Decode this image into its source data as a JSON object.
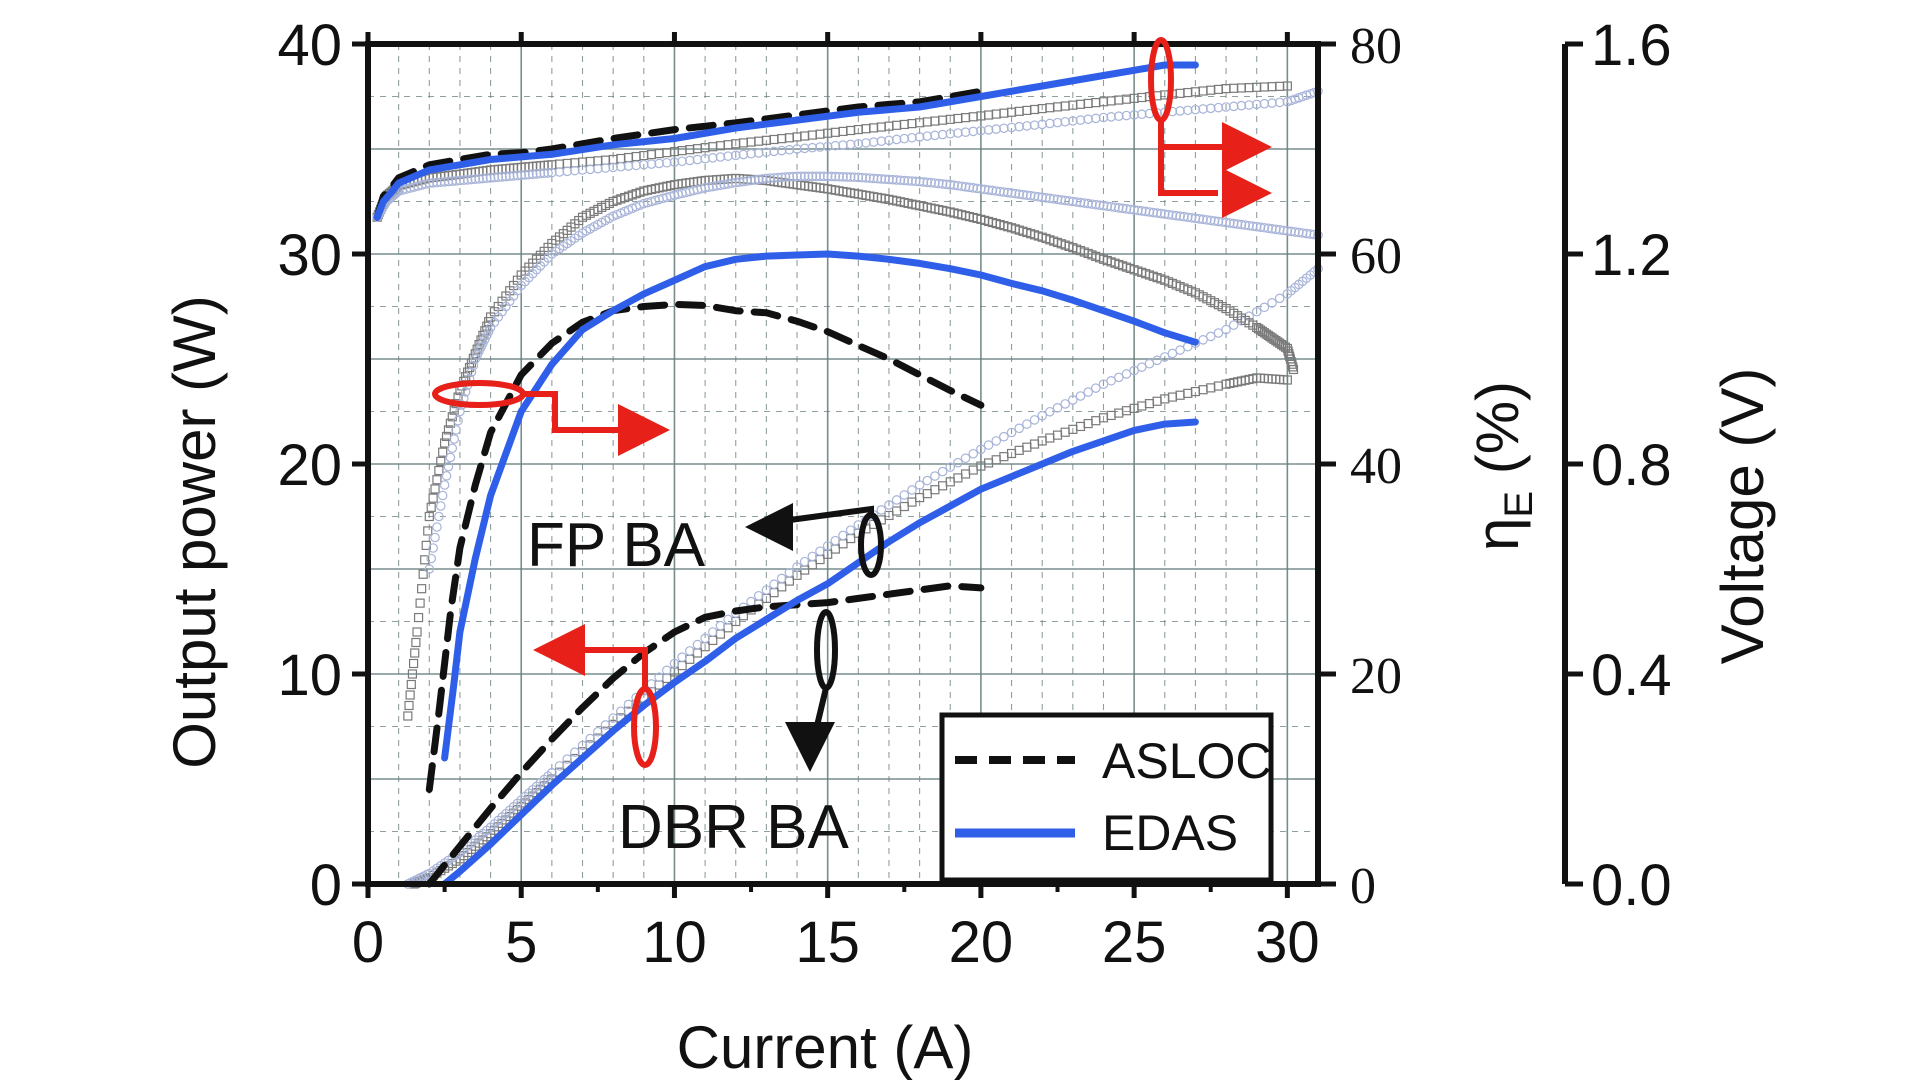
{
  "chart_data": {
    "type": "line",
    "xlabel": "Current (A)",
    "ylabel_left": "Output power (W)",
    "ylabel_mid": "η",
    "ylabel_mid_sub": "E",
    "ylabel_mid_suffix": " (%)",
    "ylabel_right": "Voltage (V)",
    "xlim": [
      0,
      31
    ],
    "ylim_left": [
      0,
      40
    ],
    "ylim_mid": [
      0,
      80
    ],
    "ylim_right": [
      0,
      1.6
    ],
    "x_ticks": [
      "0",
      "5",
      "10",
      "15",
      "20",
      "25",
      "30"
    ],
    "left_ticks": [
      "0",
      "10",
      "20",
      "30",
      "40"
    ],
    "mid_ticks": [
      "0",
      "20",
      "40",
      "60",
      "80"
    ],
    "right_ticks": [
      "0.0",
      "0.4",
      "0.8",
      "1.2",
      "1.6"
    ],
    "grid": true,
    "legend_position": "bottom-right",
    "legend": [
      {
        "label": "ASLOC",
        "style": "dashed",
        "color": "#111111"
      },
      {
        "label": "EDAS",
        "style": "solid",
        "color": "#2f5fe8"
      }
    ],
    "annotations": [
      "FP BA",
      "DBR BA"
    ],
    "colors": {
      "edas": "#2f5fe8",
      "asloc": "#111111",
      "markers": "#888888",
      "arrows": "#e8201a",
      "grid": "#6a8080"
    },
    "series": [
      {
        "name": "ASLOC",
        "group": "power",
        "axis": "left",
        "style": "dashed",
        "x": [
          2.0,
          2.5,
          3,
          4,
          5,
          6,
          7,
          8,
          9,
          10,
          11,
          12,
          13,
          14,
          15,
          16,
          17,
          18,
          19,
          20
        ],
        "y": [
          0,
          0.9,
          1.8,
          3.6,
          5.3,
          6.9,
          8.4,
          9.8,
          11.0,
          12.0,
          12.7,
          13.0,
          13.2,
          13.3,
          13.4,
          13.6,
          13.8,
          14.0,
          14.2,
          14.1
        ]
      },
      {
        "name": "EDAS",
        "group": "power",
        "axis": "left",
        "style": "solid",
        "x": [
          2.5,
          3,
          4,
          5,
          6,
          7,
          8,
          9,
          10,
          11,
          12,
          13,
          14,
          15,
          16,
          17,
          18,
          19,
          20,
          21,
          22,
          23,
          24,
          25,
          26,
          27
        ],
        "y": [
          0,
          0.6,
          1.9,
          3.3,
          4.7,
          6.0,
          7.3,
          8.5,
          9.6,
          10.6,
          11.7,
          12.6,
          13.5,
          14.3,
          15.3,
          16.3,
          17.2,
          18.0,
          18.8,
          19.4,
          20.0,
          20.6,
          21.1,
          21.6,
          21.9,
          22.0
        ]
      },
      {
        "name": "ASLOC",
        "group": "efficiency",
        "axis": "mid",
        "style": "dashed",
        "x": [
          2.0,
          2.3,
          2.7,
          3,
          3.5,
          4,
          5,
          6,
          7,
          8,
          9,
          10,
          11,
          12,
          13,
          14,
          15,
          16,
          17,
          18,
          19,
          20
        ],
        "y": [
          9,
          16,
          26,
          32,
          38,
          43,
          48.5,
          51.5,
          53.5,
          54.6,
          55.0,
          55.2,
          55.1,
          54.6,
          54.4,
          53.6,
          52.6,
          51.3,
          50.0,
          48.5,
          47.0,
          45.6
        ]
      },
      {
        "name": "EDAS",
        "group": "efficiency",
        "axis": "mid",
        "style": "solid",
        "x": [
          2.5,
          2.8,
          3,
          3.5,
          4,
          5,
          6,
          7,
          8,
          9,
          10,
          11,
          12,
          13,
          14,
          15,
          16,
          17,
          18,
          19,
          20,
          21,
          22,
          23,
          24,
          25,
          26,
          27
        ],
        "y": [
          12,
          19,
          24,
          31,
          37,
          45,
          49.5,
          52.8,
          54.6,
          56.2,
          57.5,
          58.8,
          59.5,
          59.8,
          59.9,
          60.0,
          59.8,
          59.5,
          59.1,
          58.6,
          58.0,
          57.2,
          56.5,
          55.6,
          54.6,
          53.6,
          52.5,
          51.6
        ]
      },
      {
        "name": "ASLOC",
        "group": "voltage",
        "axis": "right",
        "style": "dashed",
        "x": [
          0.3,
          0.5,
          0.8,
          1,
          2,
          3,
          4,
          5,
          6,
          8,
          10,
          12,
          14,
          16,
          18,
          20
        ],
        "y": [
          1.27,
          1.31,
          1.33,
          1.345,
          1.37,
          1.38,
          1.39,
          1.393,
          1.4,
          1.42,
          1.437,
          1.45,
          1.465,
          1.48,
          1.49,
          1.51
        ]
      },
      {
        "name": "EDAS",
        "group": "voltage",
        "axis": "right",
        "style": "solid",
        "x": [
          0.3,
          0.5,
          0.8,
          1,
          2,
          3,
          4,
          5,
          6,
          8,
          10,
          12,
          14,
          16,
          18,
          20,
          22,
          24,
          25,
          26,
          27
        ],
        "y": [
          1.27,
          1.3,
          1.32,
          1.335,
          1.36,
          1.37,
          1.38,
          1.385,
          1.39,
          1.408,
          1.42,
          1.44,
          1.455,
          1.47,
          1.48,
          1.5,
          1.52,
          1.54,
          1.55,
          1.56,
          1.56
        ]
      },
      {
        "name": "FP BA (squares)",
        "group": "power",
        "axis": "left",
        "style": "squares",
        "x": [
          1.5,
          2,
          3,
          4,
          5,
          6,
          8,
          10,
          12,
          14,
          16,
          18,
          20,
          22,
          24,
          26,
          28,
          29,
          30
        ],
        "y": [
          0,
          0.3,
          1.2,
          2.4,
          3.7,
          5.0,
          7.6,
          10.1,
          12.5,
          14.7,
          16.7,
          18.4,
          19.9,
          21.1,
          22.2,
          23.1,
          23.8,
          24.1,
          24.0
        ]
      },
      {
        "name": "FP BA (circles)",
        "group": "power",
        "axis": "left",
        "style": "circles",
        "x": [
          1.3,
          2,
          3,
          4,
          5,
          6,
          8,
          10,
          12,
          14,
          16,
          18,
          20,
          22,
          24,
          26,
          28,
          30,
          31
        ],
        "y": [
          0,
          0.5,
          1.5,
          2.7,
          4.0,
          5.3,
          7.9,
          10.5,
          12.9,
          15.1,
          17.1,
          19.0,
          20.7,
          22.3,
          23.8,
          25.1,
          26.4,
          28.1,
          29.3
        ]
      },
      {
        "name": "FP BA (squares)",
        "group": "efficiency",
        "axis": "mid",
        "style": "squares",
        "x": [
          1.3,
          1.6,
          2,
          2.5,
          3,
          3.5,
          4,
          5,
          6,
          7,
          8,
          9,
          10,
          11,
          12,
          13,
          14,
          15,
          16,
          17,
          18,
          19,
          20,
          21,
          22,
          23,
          24,
          25,
          26,
          27,
          28,
          29,
          29.5,
          30,
          30.2
        ],
        "y": [
          16,
          24,
          35,
          42,
          47,
          50.5,
          54,
          58,
          61,
          63.5,
          65,
          66,
          66.6,
          67,
          67.2,
          67.0,
          66.6,
          66.2,
          65.7,
          65.2,
          64.6,
          64.0,
          63.3,
          62.5,
          61.6,
          60.6,
          59.5,
          58.5,
          57.5,
          56.3,
          54.8,
          53.0,
          52.0,
          51.0,
          49.0
        ]
      },
      {
        "name": "FP BA (circles)",
        "group": "efficiency",
        "axis": "mid",
        "style": "circles",
        "x": [
          2,
          2.5,
          3,
          3.5,
          4,
          5,
          6,
          7,
          8,
          9,
          10,
          11,
          12,
          13,
          14,
          15,
          16,
          17,
          18,
          19,
          20,
          21,
          22,
          23,
          24,
          25,
          26,
          27,
          28,
          29,
          30,
          31
        ],
        "y": [
          30,
          38,
          45,
          50,
          53,
          57,
          60,
          62,
          63.6,
          64.8,
          65.6,
          66.3,
          66.8,
          67.2,
          67.4,
          67.4,
          67.3,
          67.1,
          66.9,
          66.6,
          66.2,
          65.8,
          65.4,
          65.0,
          64.6,
          64.2,
          63.8,
          63.4,
          63.0,
          62.6,
          62.2,
          61.8
        ]
      },
      {
        "name": "FP BA (squares)",
        "group": "voltage",
        "axis": "right",
        "style": "squares",
        "x": [
          0.3,
          0.6,
          1,
          2,
          3,
          4,
          5,
          6,
          8,
          10,
          12,
          14,
          16,
          18,
          20,
          22,
          24,
          26,
          28,
          30
        ],
        "y": [
          1.27,
          1.31,
          1.33,
          1.345,
          1.352,
          1.36,
          1.365,
          1.37,
          1.38,
          1.395,
          1.41,
          1.423,
          1.437,
          1.45,
          1.463,
          1.477,
          1.49,
          1.503,
          1.515,
          1.52
        ]
      },
      {
        "name": "FP BA (circles)",
        "group": "voltage",
        "axis": "right",
        "style": "circles",
        "x": [
          0.3,
          0.6,
          1,
          2,
          3,
          4,
          5,
          6,
          8,
          10,
          12,
          14,
          16,
          18,
          20,
          22,
          24,
          26,
          28,
          30,
          31
        ],
        "y": [
          1.27,
          1.3,
          1.32,
          1.335,
          1.34,
          1.345,
          1.35,
          1.355,
          1.365,
          1.375,
          1.388,
          1.4,
          1.41,
          1.423,
          1.435,
          1.447,
          1.46,
          1.47,
          1.48,
          1.49,
          1.51
        ]
      }
    ]
  }
}
